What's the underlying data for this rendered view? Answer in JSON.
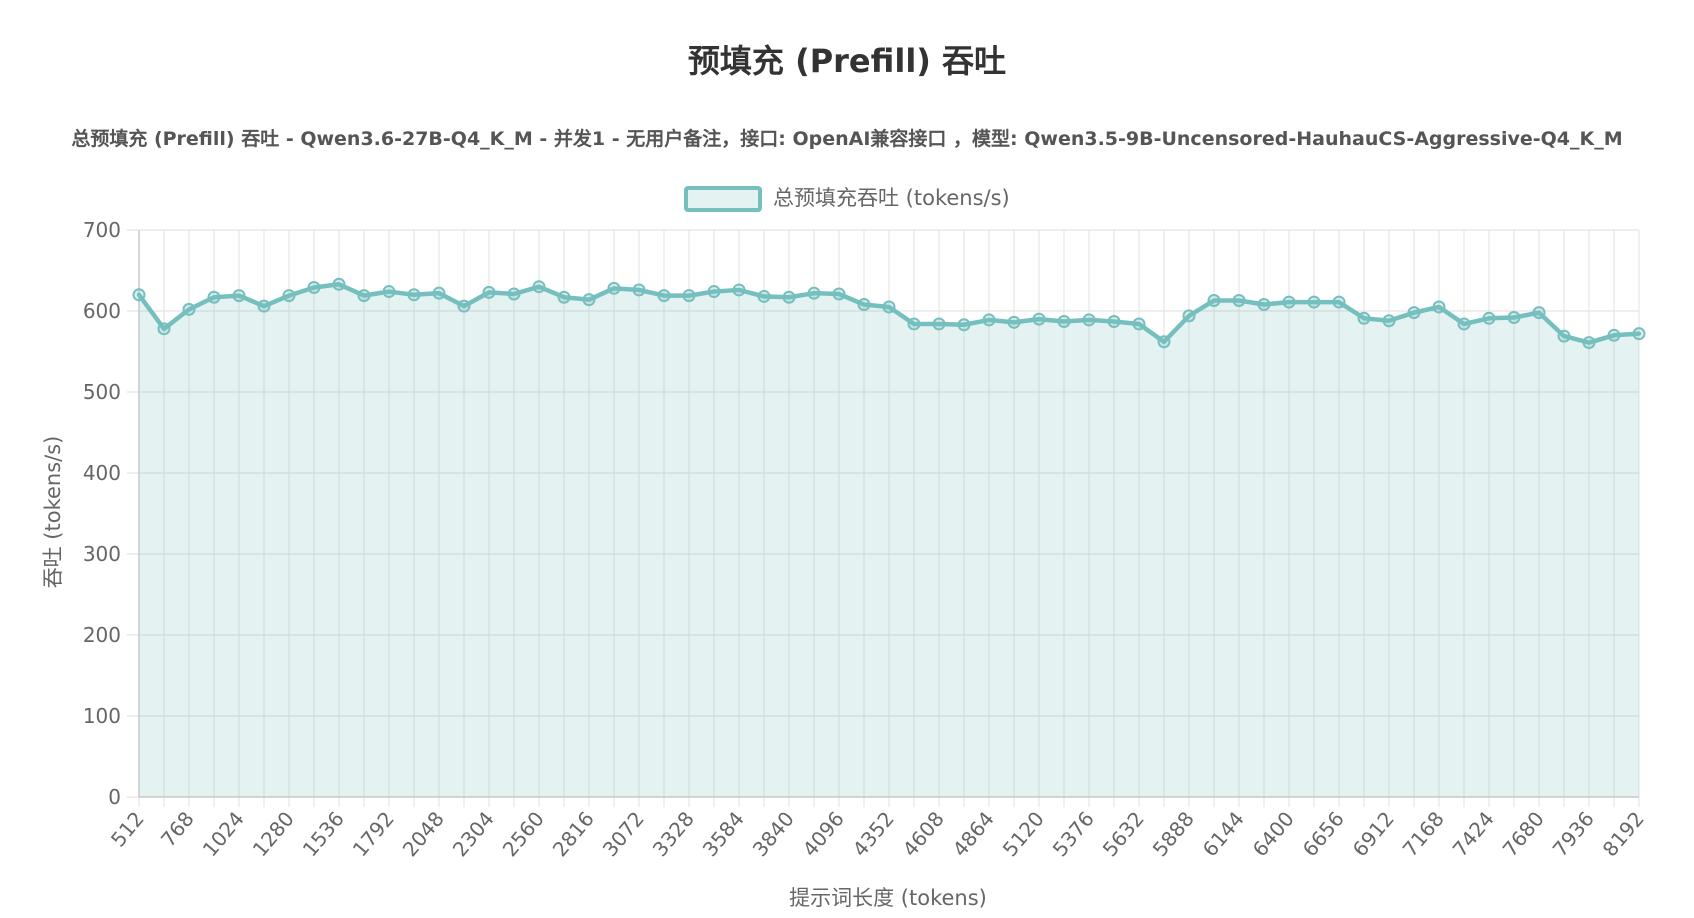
{
  "chart_data": {
    "type": "line",
    "title": "预填充 (Prefill) 吞吐",
    "subtitle": "总预填充 (Prefill) 吞吐 - Qwen3.6-27B-Q4_K_M - 并发1 - 无用户备注，接口: OpenAI兼容接口 ，模型: Qwen3.5-9B-Uncensored-HauhauCS-Aggressive-Q4_K_M",
    "xlabel": "提示词长度 (tokens)",
    "ylabel": "吞吐 (tokens/s)",
    "ylim": [
      0,
      700
    ],
    "yticks": [
      0,
      100,
      200,
      300,
      400,
      500,
      600,
      700
    ],
    "xlim": [
      512,
      8192
    ],
    "xticks": [
      512,
      768,
      1024,
      1280,
      1536,
      1792,
      2048,
      2304,
      2560,
      2816,
      3072,
      3328,
      3584,
      3840,
      4096,
      4352,
      4608,
      4864,
      5120,
      5376,
      5632,
      5888,
      6144,
      6400,
      6656,
      6912,
      7168,
      7424,
      7680,
      7936,
      8192
    ],
    "grid": true,
    "legend_position": "top",
    "x": [
      512,
      640,
      768,
      896,
      1024,
      1152,
      1280,
      1408,
      1536,
      1664,
      1792,
      1920,
      2048,
      2176,
      2304,
      2432,
      2560,
      2688,
      2816,
      2944,
      3072,
      3200,
      3328,
      3456,
      3584,
      3712,
      3840,
      3968,
      4096,
      4224,
      4352,
      4480,
      4608,
      4736,
      4864,
      4992,
      5120,
      5248,
      5376,
      5504,
      5632,
      5760,
      5888,
      6016,
      6144,
      6272,
      6400,
      6528,
      6656,
      6784,
      6912,
      7040,
      7168,
      7296,
      7424,
      7552,
      7680,
      7808,
      7936,
      8064,
      8192
    ],
    "series": [
      {
        "name": "总预填充吞吐 (tokens/s)",
        "color": "#76bfbf",
        "fill": "rgba(118,191,191,0.2)",
        "values": [
          620,
          578,
          602,
          617,
          619,
          606,
          619,
          629,
          633,
          619,
          624,
          620,
          622,
          606,
          623,
          621,
          630,
          617,
          614,
          628,
          626,
          619,
          619,
          624,
          626,
          618,
          617,
          622,
          621,
          608,
          605,
          584,
          584,
          583,
          589,
          586,
          590,
          587,
          589,
          587,
          584,
          562,
          594,
          613,
          613,
          608,
          611,
          611,
          611,
          591,
          588,
          598,
          605,
          584,
          591,
          592,
          598,
          569,
          561,
          570,
          572
        ]
      }
    ]
  }
}
